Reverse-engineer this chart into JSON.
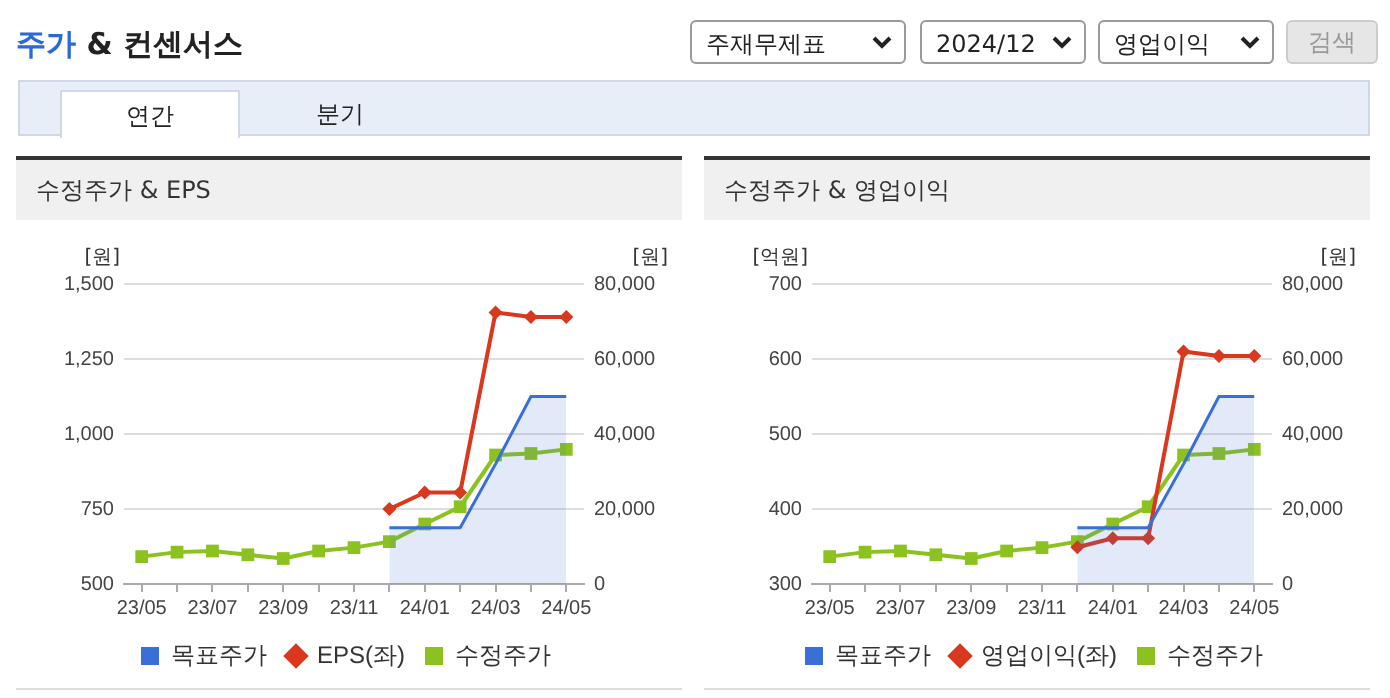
{
  "chart_data": [
    {
      "type": "other",
      "title": "주가 & 컨센서스",
      "annotations": [
        "주재무제표",
        "2024/12",
        "영업이익",
        "검색",
        "연간",
        "분기"
      ]
    },
    {
      "type": "line",
      "title": "수정주가 & EPS",
      "ylabel": "[원]",
      "y2label": "[원]",
      "categories": [
        "23/05",
        null,
        "23/07",
        null,
        "23/09",
        null,
        "23/11",
        null,
        "24/01",
        null,
        "24/03",
        null,
        "24/05"
      ],
      "series": [
        {
          "name": "목표주가",
          "type": "area",
          "axis": "y2",
          "marker": "none",
          "color": "#3b6fd8",
          "values": [
            null,
            null,
            null,
            null,
            null,
            null,
            null,
            15000,
            15000,
            15000,
            32000,
            50000,
            50000
          ]
        },
        {
          "name": "EPS(좌)",
          "type": "line",
          "marker": "diamond",
          "color": "#d9381e",
          "values": [
            null,
            null,
            null,
            null,
            null,
            null,
            null,
            750,
            805,
            805,
            1405,
            1390,
            1390
          ]
        },
        {
          "name": "수정주가",
          "type": "line",
          "axis": "y2",
          "marker": "square",
          "color": "#8cc21f",
          "values": [
            7300,
            8500,
            8800,
            7800,
            6800,
            8800,
            9700,
            11300,
            16000,
            20600,
            34400,
            34800,
            35900
          ]
        }
      ],
      "ylim": [
        500,
        1500
      ],
      "yticks": [
        500,
        750,
        {
          "value": 1000,
          "label": "1,000"
        },
        {
          "value": 1250,
          "label": "1,250"
        },
        {
          "value": 1500,
          "label": "1,500"
        }
      ],
      "y2lim": [
        0,
        80000
      ],
      "y2ticks": [
        0,
        {
          "value": 20000,
          "label": "20,000"
        },
        {
          "value": 40000,
          "label": "40,000"
        },
        {
          "value": 60000,
          "label": "60,000"
        },
        {
          "value": 80000,
          "label": "80,000"
        }
      ],
      "grid": "y",
      "legend": "bottom"
    },
    {
      "type": "line",
      "title": "수정주가 & 영업이익",
      "ylabel": "[억원]",
      "y2label": "[원]",
      "categories": [
        "23/05",
        null,
        "23/07",
        null,
        "23/09",
        null,
        "23/11",
        null,
        "24/01",
        null,
        "24/03",
        null,
        "24/05"
      ],
      "series": [
        {
          "name": "목표주가",
          "type": "area",
          "axis": "y2",
          "marker": "none",
          "color": "#3b6fd8",
          "values": [
            null,
            null,
            null,
            null,
            null,
            null,
            null,
            15000,
            15000,
            15000,
            32000,
            50000,
            50000
          ]
        },
        {
          "name": "영업이익(좌)",
          "type": "line",
          "marker": "diamond",
          "color": "#d9381e",
          "values": [
            null,
            null,
            null,
            null,
            null,
            null,
            null,
            349,
            361,
            361,
            610,
            604,
            604
          ]
        },
        {
          "name": "수정주가",
          "type": "line",
          "axis": "y2",
          "marker": "square",
          "color": "#8cc21f",
          "values": [
            7300,
            8500,
            8800,
            7800,
            6800,
            8800,
            9700,
            11300,
            16000,
            20600,
            34400,
            34800,
            35900
          ]
        }
      ],
      "ylim": [
        300,
        700
      ],
      "yticks": [
        300,
        400,
        500,
        600,
        700
      ],
      "y2lim": [
        0,
        80000
      ],
      "y2ticks": [
        0,
        {
          "value": 20000,
          "label": "20,000"
        },
        {
          "value": 40000,
          "label": "40,000"
        },
        {
          "value": 60000,
          "label": "60,000"
        },
        {
          "value": 80000,
          "label": "80,000"
        }
      ],
      "grid": "y",
      "legend": "bottom"
    }
  ]
}
